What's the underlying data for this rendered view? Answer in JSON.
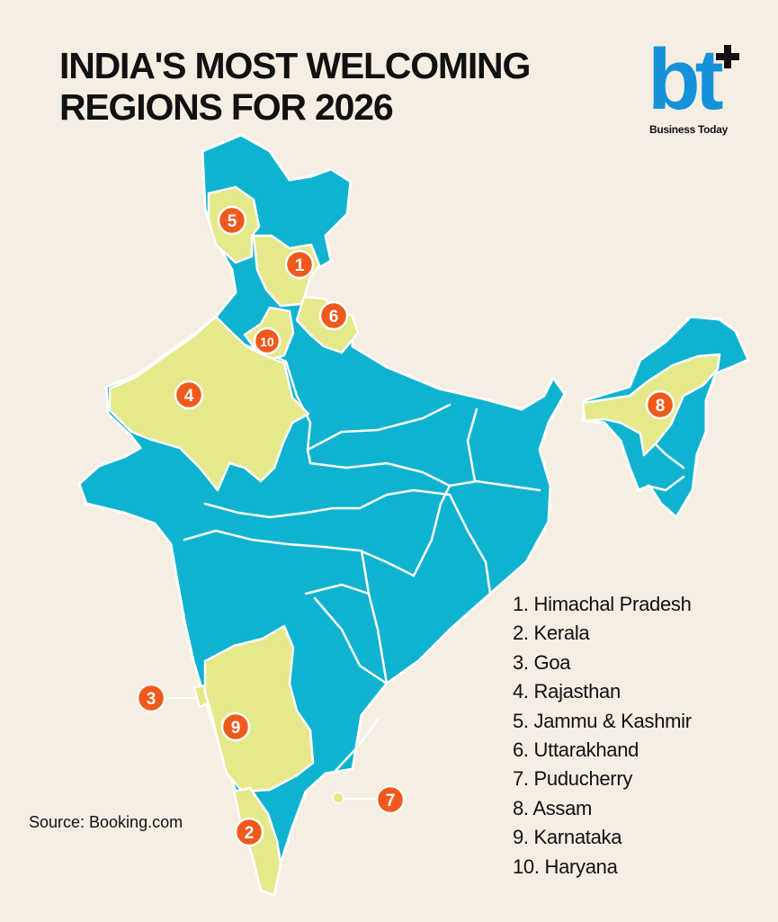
{
  "title": {
    "line1": "INDIA'S MOST WELCOMING",
    "line2": "REGIONS FOR 2026"
  },
  "logo": {
    "mark": "bt",
    "icon": "plus-icon",
    "name": "Business Today"
  },
  "source": "Source: Booking.com",
  "colors": {
    "background": "#f5eee3",
    "land": "#0fb3d0",
    "highlight": "#e6e98b",
    "marker": "#ef5a1c",
    "border": "#ffffff",
    "logo_blue": "#1592d9"
  },
  "regions": [
    {
      "rank": "1",
      "name": "1. Himachal Pradesh"
    },
    {
      "rank": "2",
      "name": "2. Kerala"
    },
    {
      "rank": "3",
      "name": "3. Goa"
    },
    {
      "rank": "4",
      "name": "4. Rajasthan"
    },
    {
      "rank": "5",
      "name": "5. Jammu & Kashmir"
    },
    {
      "rank": "6",
      "name": "6. Uttarakhand"
    },
    {
      "rank": "7",
      "name": "7. Puducherry"
    },
    {
      "rank": "8",
      "name": "8. Assam"
    },
    {
      "rank": "9",
      "name": "9. Karnataka"
    },
    {
      "rank": "10",
      "name": "10. Haryana"
    }
  ]
}
